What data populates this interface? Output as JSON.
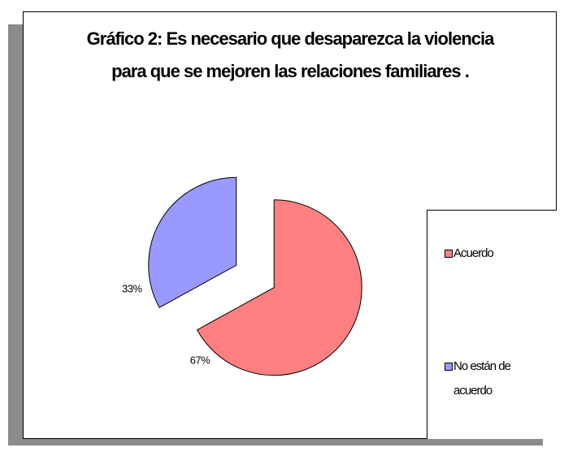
{
  "chart_data": {
    "type": "pie",
    "title": "Gráfico 2: Es necesario que desaparezca la violencia para que se mejoren las relaciones familiares .",
    "categories": [
      "Acuerdo",
      "No están de acuerdo"
    ],
    "values": [
      67,
      33
    ],
    "value_labels": [
      "67%",
      "33%"
    ],
    "colors": [
      "#FF8080",
      "#9999FF"
    ],
    "legend": "right"
  }
}
